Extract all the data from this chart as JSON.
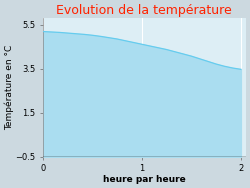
{
  "title": "Evolution de la température",
  "title_color": "#ff2200",
  "xlabel": "heure par heure",
  "ylabel": "Température en °C",
  "xlim": [
    0,
    2.05
  ],
  "ylim": [
    -0.5,
    5.8
  ],
  "yticks": [
    -0.5,
    1.5,
    3.5,
    5.5
  ],
  "xticks": [
    0,
    1,
    2
  ],
  "outer_bg_color": "#ccd9e0",
  "plot_bg_color": "#ddeef5",
  "fill_color": "#aaddf0",
  "line_color": "#66ccee",
  "x_data": [
    0.0,
    0.083,
    0.167,
    0.25,
    0.333,
    0.417,
    0.5,
    0.583,
    0.667,
    0.75,
    0.833,
    0.917,
    1.0,
    1.083,
    1.167,
    1.25,
    1.333,
    1.417,
    1.5,
    1.583,
    1.667,
    1.75,
    1.833,
    1.917,
    2.0
  ],
  "y_data": [
    5.2,
    5.18,
    5.16,
    5.13,
    5.1,
    5.07,
    5.03,
    4.98,
    4.92,
    4.86,
    4.78,
    4.7,
    4.62,
    4.54,
    4.46,
    4.38,
    4.28,
    4.18,
    4.08,
    3.96,
    3.84,
    3.72,
    3.62,
    3.54,
    3.48
  ],
  "fill_baseline": -0.5,
  "title_fontsize": 9,
  "label_fontsize": 6.5,
  "tick_fontsize": 6,
  "baseline_color": "#000000",
  "grid_color": "#ffffff",
  "figsize": [
    2.5,
    1.88
  ],
  "dpi": 100
}
